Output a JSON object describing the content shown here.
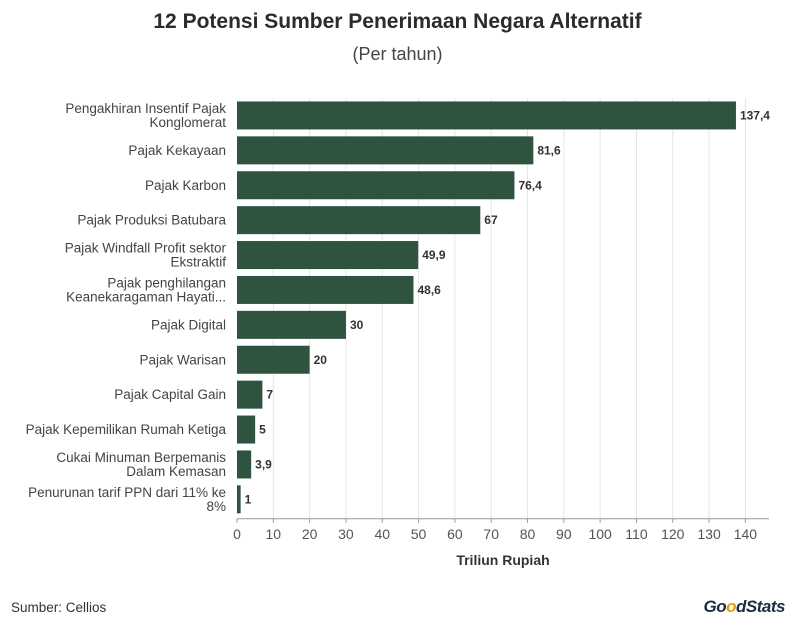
{
  "chart_data": {
    "type": "bar",
    "orientation": "horizontal",
    "title": "12 Potensi Sumber Penerimaan Negara Alternatif",
    "subtitle": "(Per tahun)",
    "xlabel": "Triliun Rupiah",
    "ylabel": "",
    "xlim": [
      0,
      140
    ],
    "xticks": [
      0,
      10,
      20,
      30,
      40,
      50,
      60,
      70,
      80,
      90,
      100,
      110,
      120,
      130,
      140
    ],
    "grid": true,
    "bar_color": "#2e5440",
    "categories": [
      [
        "Pengakhiran Insentif Pajak",
        "Konglomerat"
      ],
      [
        "Pajak Kekayaan"
      ],
      [
        "Pajak Karbon"
      ],
      [
        "Pajak Produksi Batubara"
      ],
      [
        "Pajak Windfall Profit sektor",
        "Ekstraktif"
      ],
      [
        "Pajak penghilangan",
        "Keanekaragaman Hayati..."
      ],
      [
        "Pajak Digital"
      ],
      [
        "Pajak Warisan"
      ],
      [
        "Pajak Capital Gain"
      ],
      [
        "Pajak Kepemilikan Rumah Ketiga"
      ],
      [
        "Cukai Minuman Berpemanis",
        "Dalam Kemasan"
      ],
      [
        "Penurunan tarif PPN dari 11% ke",
        "8%"
      ]
    ],
    "values": [
      137.4,
      81.6,
      76.4,
      67,
      49.9,
      48.6,
      30,
      20,
      7,
      5,
      3.9,
      1
    ],
    "value_labels": [
      "137,4",
      "81,6",
      "76,4",
      "67",
      "49,9",
      "48,6",
      "30",
      "20",
      "7",
      "5",
      "3,9",
      "1"
    ]
  },
  "footer": {
    "source": "Sumber: Cellios",
    "logo_part1": "Go",
    "logo_part2": "o",
    "logo_part3": "dStats"
  }
}
